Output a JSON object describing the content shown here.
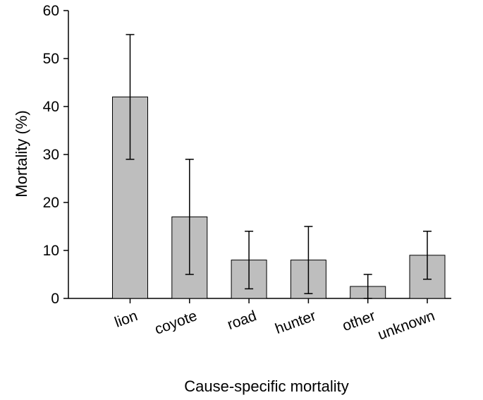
{
  "chart_data": {
    "type": "bar",
    "title": "",
    "xlabel": "Cause-specific mortality",
    "ylabel": "Mortality (%)",
    "categories": [
      "lion",
      "coyote",
      "road",
      "hunter",
      "other",
      "unknown"
    ],
    "values": [
      42,
      17,
      8,
      8,
      2.5,
      9
    ],
    "error_low": [
      29,
      5,
      2,
      1,
      0,
      4
    ],
    "error_high": [
      55,
      29,
      14,
      15,
      5,
      14
    ],
    "ylim": [
      0,
      60
    ],
    "yticks": [
      "0",
      "10",
      "20",
      "30",
      "40",
      "50",
      "60"
    ],
    "grid": false,
    "legend": "none",
    "bar_color": "#bebebe",
    "bar_edge_color": "#000000"
  }
}
